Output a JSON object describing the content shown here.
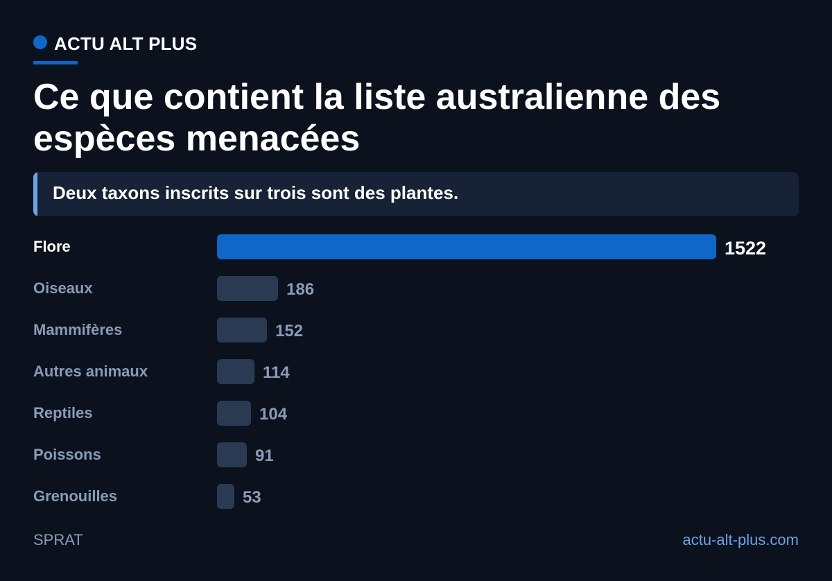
{
  "brand": {
    "name": "ACTU ALT PLUS",
    "accent_color": "#0f67c8"
  },
  "title": "Ce que contient la liste australienne des espèces menacées",
  "subtitle": "Deux taxons inscrits sur trois sont des plantes.",
  "chart_data": {
    "type": "bar",
    "orientation": "horizontal",
    "categories": [
      "Flore",
      "Oiseaux",
      "Mammifères",
      "Autres animaux",
      "Reptiles",
      "Poissons",
      "Grenouilles"
    ],
    "values": [
      1522,
      186,
      152,
      114,
      104,
      91,
      53
    ],
    "highlight_index": 0,
    "colors": {
      "highlight": "#0f67c8",
      "default": "#2b3a53"
    }
  },
  "footer": {
    "source": "SPRAT",
    "site": "actu-alt-plus.com"
  }
}
